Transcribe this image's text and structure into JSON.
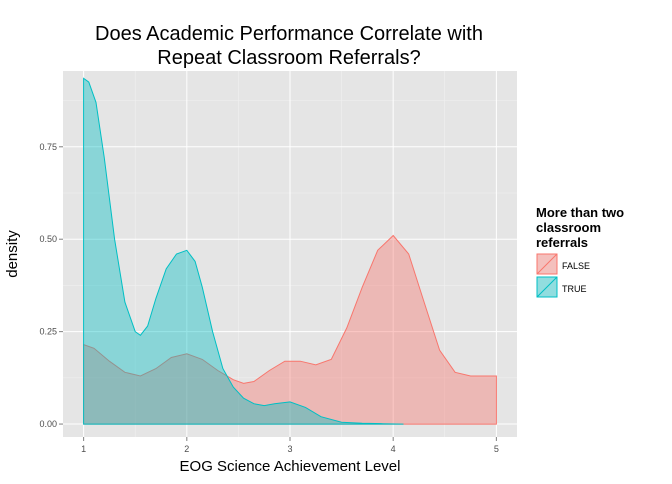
{
  "chart_data": {
    "type": "area",
    "title_lines": [
      "Does Academic Performance Correlate with",
      "Repeat Classroom Referrals?"
    ],
    "xlabel": "EOG Science Achievement Level",
    "ylabel": "density",
    "x_ticks": [
      "1",
      "2",
      "3",
      "4",
      "5"
    ],
    "y_ticks": [
      "0.00",
      "0.25",
      "0.50",
      "0.75"
    ],
    "xlim": [
      0.8,
      5.2
    ],
    "ylim": [
      -0.035,
      0.955
    ],
    "grid": true,
    "legend": {
      "title_lines": [
        "More than two",
        "classroom",
        "referrals"
      ],
      "placement": "right",
      "entries": [
        "FALSE",
        "TRUE"
      ]
    },
    "series": [
      {
        "name": "FALSE",
        "color": "#F8766D",
        "x": [
          1.0,
          1.1,
          1.25,
          1.4,
          1.55,
          1.7,
          1.85,
          2.0,
          2.15,
          2.3,
          2.45,
          2.55,
          2.65,
          2.8,
          2.95,
          3.1,
          3.25,
          3.4,
          3.55,
          3.7,
          3.85,
          4.0,
          4.15,
          4.3,
          4.45,
          4.6,
          4.75,
          4.9,
          5.0
        ],
        "y": [
          0.215,
          0.205,
          0.17,
          0.14,
          0.13,
          0.15,
          0.18,
          0.19,
          0.175,
          0.145,
          0.12,
          0.11,
          0.115,
          0.145,
          0.17,
          0.17,
          0.16,
          0.175,
          0.26,
          0.37,
          0.47,
          0.51,
          0.46,
          0.33,
          0.2,
          0.14,
          0.13,
          0.13,
          0.13
        ]
      },
      {
        "name": "TRUE",
        "color": "#00BFC4",
        "x": [
          1.0,
          1.05,
          1.12,
          1.2,
          1.3,
          1.4,
          1.5,
          1.55,
          1.62,
          1.7,
          1.8,
          1.9,
          2.0,
          2.08,
          2.15,
          2.25,
          2.35,
          2.45,
          2.55,
          2.65,
          2.75,
          2.85,
          3.0,
          3.15,
          3.3,
          3.5,
          3.7,
          3.9,
          4.1
        ],
        "y": [
          0.935,
          0.925,
          0.87,
          0.72,
          0.5,
          0.33,
          0.25,
          0.24,
          0.265,
          0.34,
          0.42,
          0.46,
          0.47,
          0.44,
          0.37,
          0.25,
          0.15,
          0.1,
          0.07,
          0.055,
          0.05,
          0.055,
          0.06,
          0.045,
          0.02,
          0.005,
          0.002,
          0.001,
          0.0
        ]
      }
    ]
  }
}
